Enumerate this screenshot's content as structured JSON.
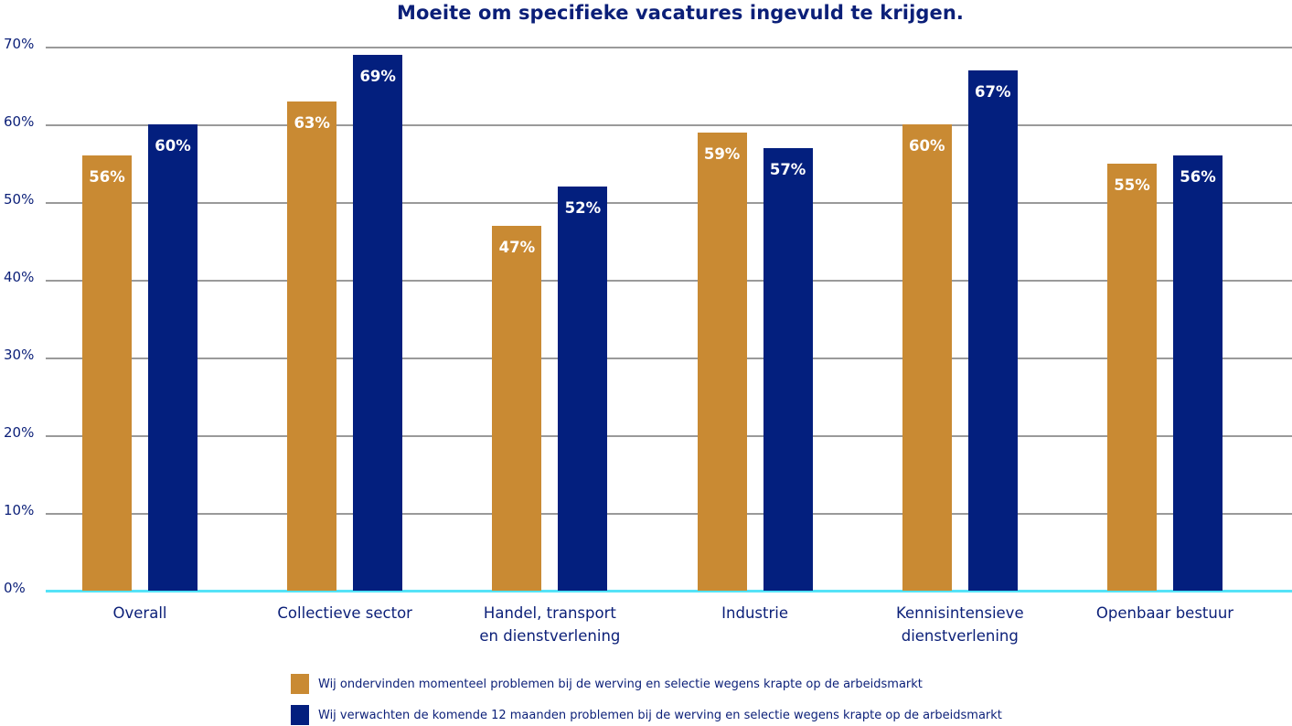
{
  "chart_data": {
    "type": "bar",
    "title": "Moeite om specifieke vacatures ingevuld te krijgen.",
    "xlabel": "",
    "ylabel": "",
    "ylim": [
      0,
      70
    ],
    "yticks": [
      "0%",
      "10%",
      "20%",
      "30%",
      "40%",
      "50%",
      "60%",
      "70%"
    ],
    "grid": true,
    "legend_position": "bottom",
    "categories": [
      "Overall",
      "Collectieve sector",
      "Handel, transport en dienstverlening",
      "Industrie",
      "Kennisintensieve dienstverlening",
      "Openbaar bestuur"
    ],
    "series": [
      {
        "name": "Wij ondervinden momenteel problemen bij de werving en selectie wegens krapte op de arbeidsmarkt",
        "color": "#c98a33",
        "values": [
          56,
          63,
          47,
          59,
          60,
          55
        ],
        "labels": [
          "56%",
          "63%",
          "47%",
          "59%",
          "60%",
          "55%"
        ]
      },
      {
        "name": "Wij verwachten de komende 12 maanden problemen bij de werving en selectie wegens krapte op de arbeidsmarkt",
        "color": "#031f7e",
        "values": [
          60,
          69,
          52,
          57,
          67,
          56
        ],
        "labels": [
          "60%",
          "69%",
          "52%",
          "57%",
          "67%",
          "56%"
        ]
      }
    ]
  },
  "x_labels": [
    [
      "Overall"
    ],
    [
      "Collectieve sector"
    ],
    [
      "Handel, transport",
      "en dienstverlening"
    ],
    [
      "Industrie"
    ],
    [
      "Kennisintensieve",
      "dienstverlening"
    ],
    [
      "Openbaar bestuur"
    ]
  ],
  "colors": {
    "title": "#0b1f78",
    "axis_text": "#0b1f78",
    "grid": "#9a9a9a",
    "baseline": "#55e3f7"
  }
}
